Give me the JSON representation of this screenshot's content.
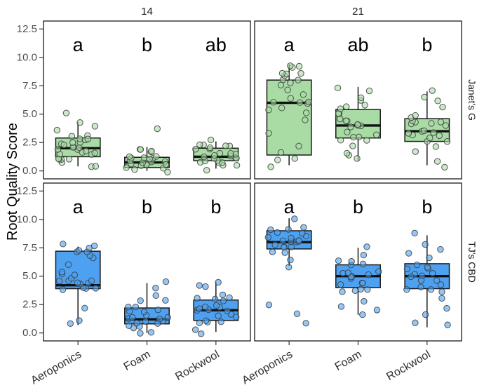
{
  "figure": {
    "ylabel": "Root Quality Score"
  },
  "chart_data": {
    "type": "boxplot",
    "title": "",
    "ylabel": "Root Quality Score",
    "xlabel": "",
    "facet_cols": [
      "14",
      "21"
    ],
    "facet_rows": [
      "Janet's G",
      "TJ's CBD"
    ],
    "categories": [
      "Aeroponics",
      "Foam",
      "Rockwool"
    ],
    "yticks": [
      0,
      2.5,
      5,
      7.5,
      10,
      12.5
    ],
    "ytick_labels": [
      "0.0",
      "2.5",
      "5.0",
      "7.5",
      "10.0",
      "12.5"
    ],
    "ylim": [
      -0.7,
      13.2
    ],
    "letter_y": 11.1,
    "grid": false,
    "legend": "none",
    "colors": {
      "Janet's G": "#A9DCA5",
      "TJ's CBD": "#4DA1F0"
    },
    "panels": [
      {
        "row": "Janet's G",
        "col": "14",
        "color": "#A9DCA5",
        "groups": [
          {
            "category": "Aeroponics",
            "letter": "a",
            "stats": {
              "whislo": 0.4,
              "q1": 1.25,
              "med": 2.0,
              "q3": 2.9,
              "whishi": 4.3
            },
            "points": [
              0.4,
              0.6,
              0.8,
              1,
              1,
              1.25,
              1.25,
              1.5,
              1.5,
              1.6,
              1.75,
              1.75,
              2,
              2,
              2,
              2.1,
              2.25,
              2.25,
              2.5,
              2.5,
              2.6,
              2.75,
              2.75,
              3,
              3,
              3.2,
              3.5,
              4,
              4.3,
              5.1
            ]
          },
          {
            "category": "Foam",
            "letter": "b",
            "stats": {
              "whislo": 0.0,
              "q1": 0.3,
              "med": 0.75,
              "q3": 1.2,
              "whishi": 2.1
            },
            "points": [
              0,
              0.1,
              0.25,
              0.25,
              0.4,
              0.5,
              0.5,
              0.5,
              0.6,
              0.75,
              0.75,
              0.75,
              0.9,
              1,
              1,
              1,
              1.1,
              1.25,
              1.25,
              1.5,
              1.6,
              1.9,
              2.1,
              3.6
            ]
          },
          {
            "category": "Rockwool",
            "letter": "ab",
            "stats": {
              "whislo": 0.2,
              "q1": 0.9,
              "med": 1.25,
              "q3": 2.0,
              "whishi": 2.6
            },
            "points": [
              0.2,
              0.4,
              0.5,
              0.6,
              0.75,
              0.9,
              1,
              1,
              1,
              1.1,
              1.25,
              1.25,
              1.25,
              1.4,
              1.5,
              1.5,
              1.6,
              1.75,
              1.75,
              2,
              2,
              2.1,
              2.25,
              2.4,
              2.6
            ]
          }
        ]
      },
      {
        "row": "Janet's G",
        "col": "21",
        "color": "#A9DCA5",
        "groups": [
          {
            "category": "Aeroponics",
            "letter": "a",
            "stats": {
              "whislo": 0.5,
              "q1": 1.4,
              "med": 6.0,
              "q3": 8.0,
              "whishi": 9.4
            },
            "points": [
              0.5,
              0.8,
              1.2,
              1.6,
              2.2,
              3.1,
              4.6,
              5,
              5.2,
              5.5,
              5.8,
              6,
              6,
              6.2,
              6.4,
              6.6,
              7,
              7.4,
              7.8,
              8,
              8,
              8.2,
              8.4,
              8.6,
              8.8,
              9,
              9.2,
              9.4
            ]
          },
          {
            "category": "Foam",
            "letter": "ab",
            "stats": {
              "whislo": 0.9,
              "q1": 2.9,
              "med": 4.0,
              "q3": 5.4,
              "whishi": 7.4
            },
            "points": [
              0.9,
              1.2,
              1.7,
              2.1,
              2.5,
              2.8,
              3,
              3.1,
              3.3,
              3.5,
              3.8,
              4,
              4,
              4.1,
              4.3,
              4.5,
              4.6,
              5,
              5.1,
              5.3,
              5.5,
              5.6,
              6,
              6.5,
              7,
              7.4
            ]
          },
          {
            "category": "Rockwool",
            "letter": "b",
            "stats": {
              "whislo": 0.5,
              "q1": 2.6,
              "med": 3.5,
              "q3": 4.6,
              "whishi": 7.0
            },
            "points": [
              0.5,
              1,
              1.6,
              2.1,
              2.5,
              2.8,
              3,
              3,
              3.2,
              3.4,
              3.5,
              3.5,
              3.6,
              3.8,
              4,
              4,
              4.1,
              4.3,
              4.5,
              4.6,
              5,
              5.5,
              6.1,
              6.6,
              7
            ]
          }
        ]
      },
      {
        "row": "TJ's CBD",
        "col": "14",
        "color": "#4DA1F0",
        "groups": [
          {
            "category": "Aeroponics",
            "letter": "a",
            "stats": {
              "whislo": 0.7,
              "q1": 3.9,
              "med": 4.2,
              "q3": 7.2,
              "whishi": 7.6
            },
            "points": [
              0.7,
              1.1,
              2.1,
              3.8,
              4,
              4,
              4.1,
              4.2,
              4.3,
              4.4,
              4.5,
              4.5,
              4.7,
              5,
              5,
              5.2,
              5.5,
              6,
              6.5,
              7,
              7,
              7.2,
              7.3,
              7.5,
              7.6,
              8
            ]
          },
          {
            "category": "Foam",
            "letter": "b",
            "stats": {
              "whislo": 0.0,
              "q1": 0.8,
              "med": 1.2,
              "q3": 2.2,
              "whishi": 4.4
            },
            "points": [
              0,
              0.25,
              0.5,
              0.5,
              0.75,
              0.8,
              1,
              1,
              1,
              1.2,
              1.25,
              1.3,
              1.5,
              1.5,
              1.75,
              2,
              2,
              2.2,
              2.5,
              2.75,
              3,
              3.5,
              4,
              4.4
            ]
          },
          {
            "category": "Rockwool",
            "letter": "b",
            "stats": {
              "whislo": 0.1,
              "q1": 1.1,
              "med": 2.0,
              "q3": 2.9,
              "whishi": 4.5
            },
            "points": [
              0.1,
              0.5,
              0.75,
              1,
              1.1,
              1.25,
              1.5,
              1.5,
              1.75,
              2,
              2,
              2,
              2.1,
              2.25,
              2.5,
              2.5,
              2.75,
              3,
              3,
              3.25,
              3.5,
              4,
              4.25,
              4.5
            ]
          }
        ]
      },
      {
        "row": "TJ's CBD",
        "col": "21",
        "color": "#4DA1F0",
        "groups": [
          {
            "category": "Aeroponics",
            "letter": "a",
            "stats": {
              "whislo": 5.9,
              "q1": 7.4,
              "med": 8.0,
              "q3": 9.0,
              "whishi": 10.1
            },
            "points": [
              1,
              1.5,
              2.5,
              6,
              6.5,
              7,
              7.25,
              7.5,
              7.5,
              7.75,
              7.75,
              8,
              8,
              8,
              8.1,
              8.25,
              8.25,
              8.5,
              8.5,
              8.75,
              9,
              9,
              9.25,
              9.5,
              10.1
            ]
          },
          {
            "category": "Foam",
            "letter": "b",
            "stats": {
              "whislo": 1.6,
              "q1": 4.0,
              "med": 5.0,
              "q3": 6.0,
              "whishi": 7.5
            },
            "points": [
              1.6,
              2,
              2.5,
              3,
              3.5,
              3.75,
              4,
              4,
              4.25,
              4.5,
              4.5,
              4.75,
              5,
              5,
              5.1,
              5.25,
              5.5,
              5.5,
              6,
              6,
              6.25,
              6.5,
              7,
              7.5
            ]
          },
          {
            "category": "Rockwool",
            "letter": "b",
            "stats": {
              "whislo": 0.5,
              "q1": 3.9,
              "med": 5.0,
              "q3": 6.1,
              "whishi": 8.6
            },
            "points": [
              0.5,
              1,
              1.5,
              2,
              3,
              3.5,
              3.75,
              4,
              4,
              4.25,
              4.5,
              4.5,
              5,
              5,
              5,
              5.25,
              5.5,
              5.5,
              6,
              6,
              6.5,
              7,
              7.5,
              8,
              8.6
            ]
          }
        ]
      }
    ]
  }
}
